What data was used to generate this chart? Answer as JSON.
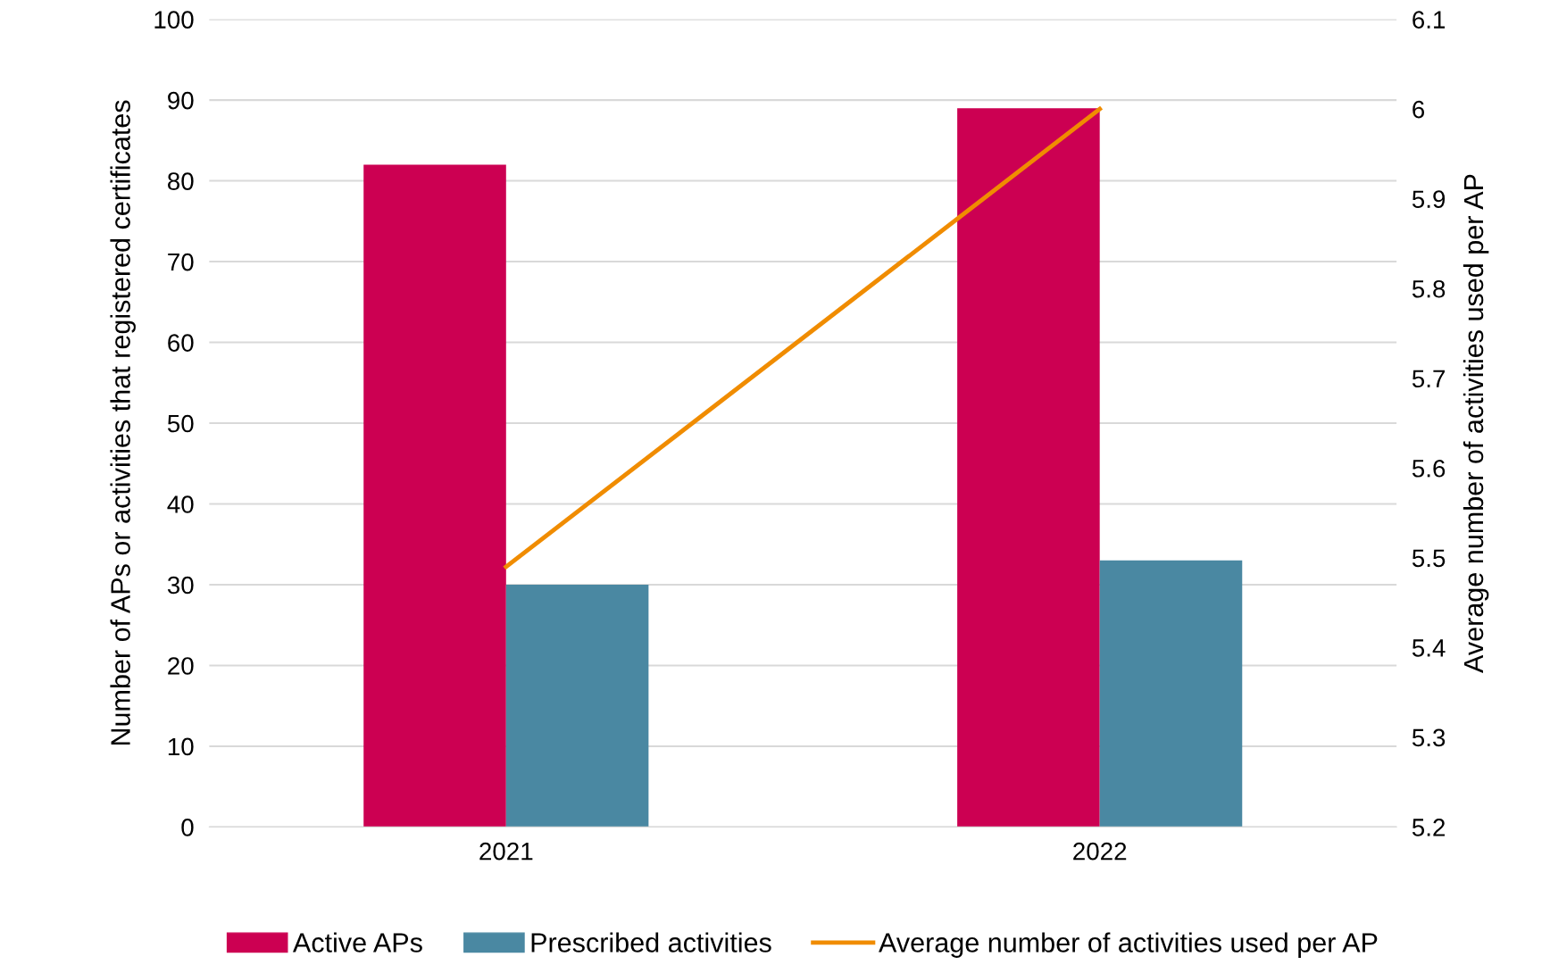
{
  "chart_data": {
    "type": "bar",
    "categories": [
      "2021",
      "2022"
    ],
    "series": [
      {
        "name": "Active APs",
        "color": "#cc0052",
        "values": [
          82,
          89
        ]
      },
      {
        "name": "Prescribed activities",
        "color": "#4a88a2",
        "values": [
          30,
          33
        ]
      },
      {
        "name": "Average number of activities used per AP",
        "type": "line",
        "axis": "y2",
        "color": "#f08c00",
        "values": [
          5.49,
          6.0
        ]
      }
    ],
    "ylabel": "Number of APs or activities that registered certificates",
    "y2label": "Average number of activities used per AP",
    "ylim": [
      0,
      100
    ],
    "yticks": [
      0,
      10,
      20,
      30,
      40,
      50,
      60,
      70,
      80,
      90,
      100
    ],
    "y2lim": [
      5.2,
      6.1
    ],
    "y2ticks": [
      5.2,
      5.3,
      5.4,
      5.5,
      5.6,
      5.7,
      5.8,
      5.9,
      6,
      6.1
    ],
    "grid": "y",
    "legend": "bottom",
    "marker": "none",
    "line_style": "solid"
  }
}
